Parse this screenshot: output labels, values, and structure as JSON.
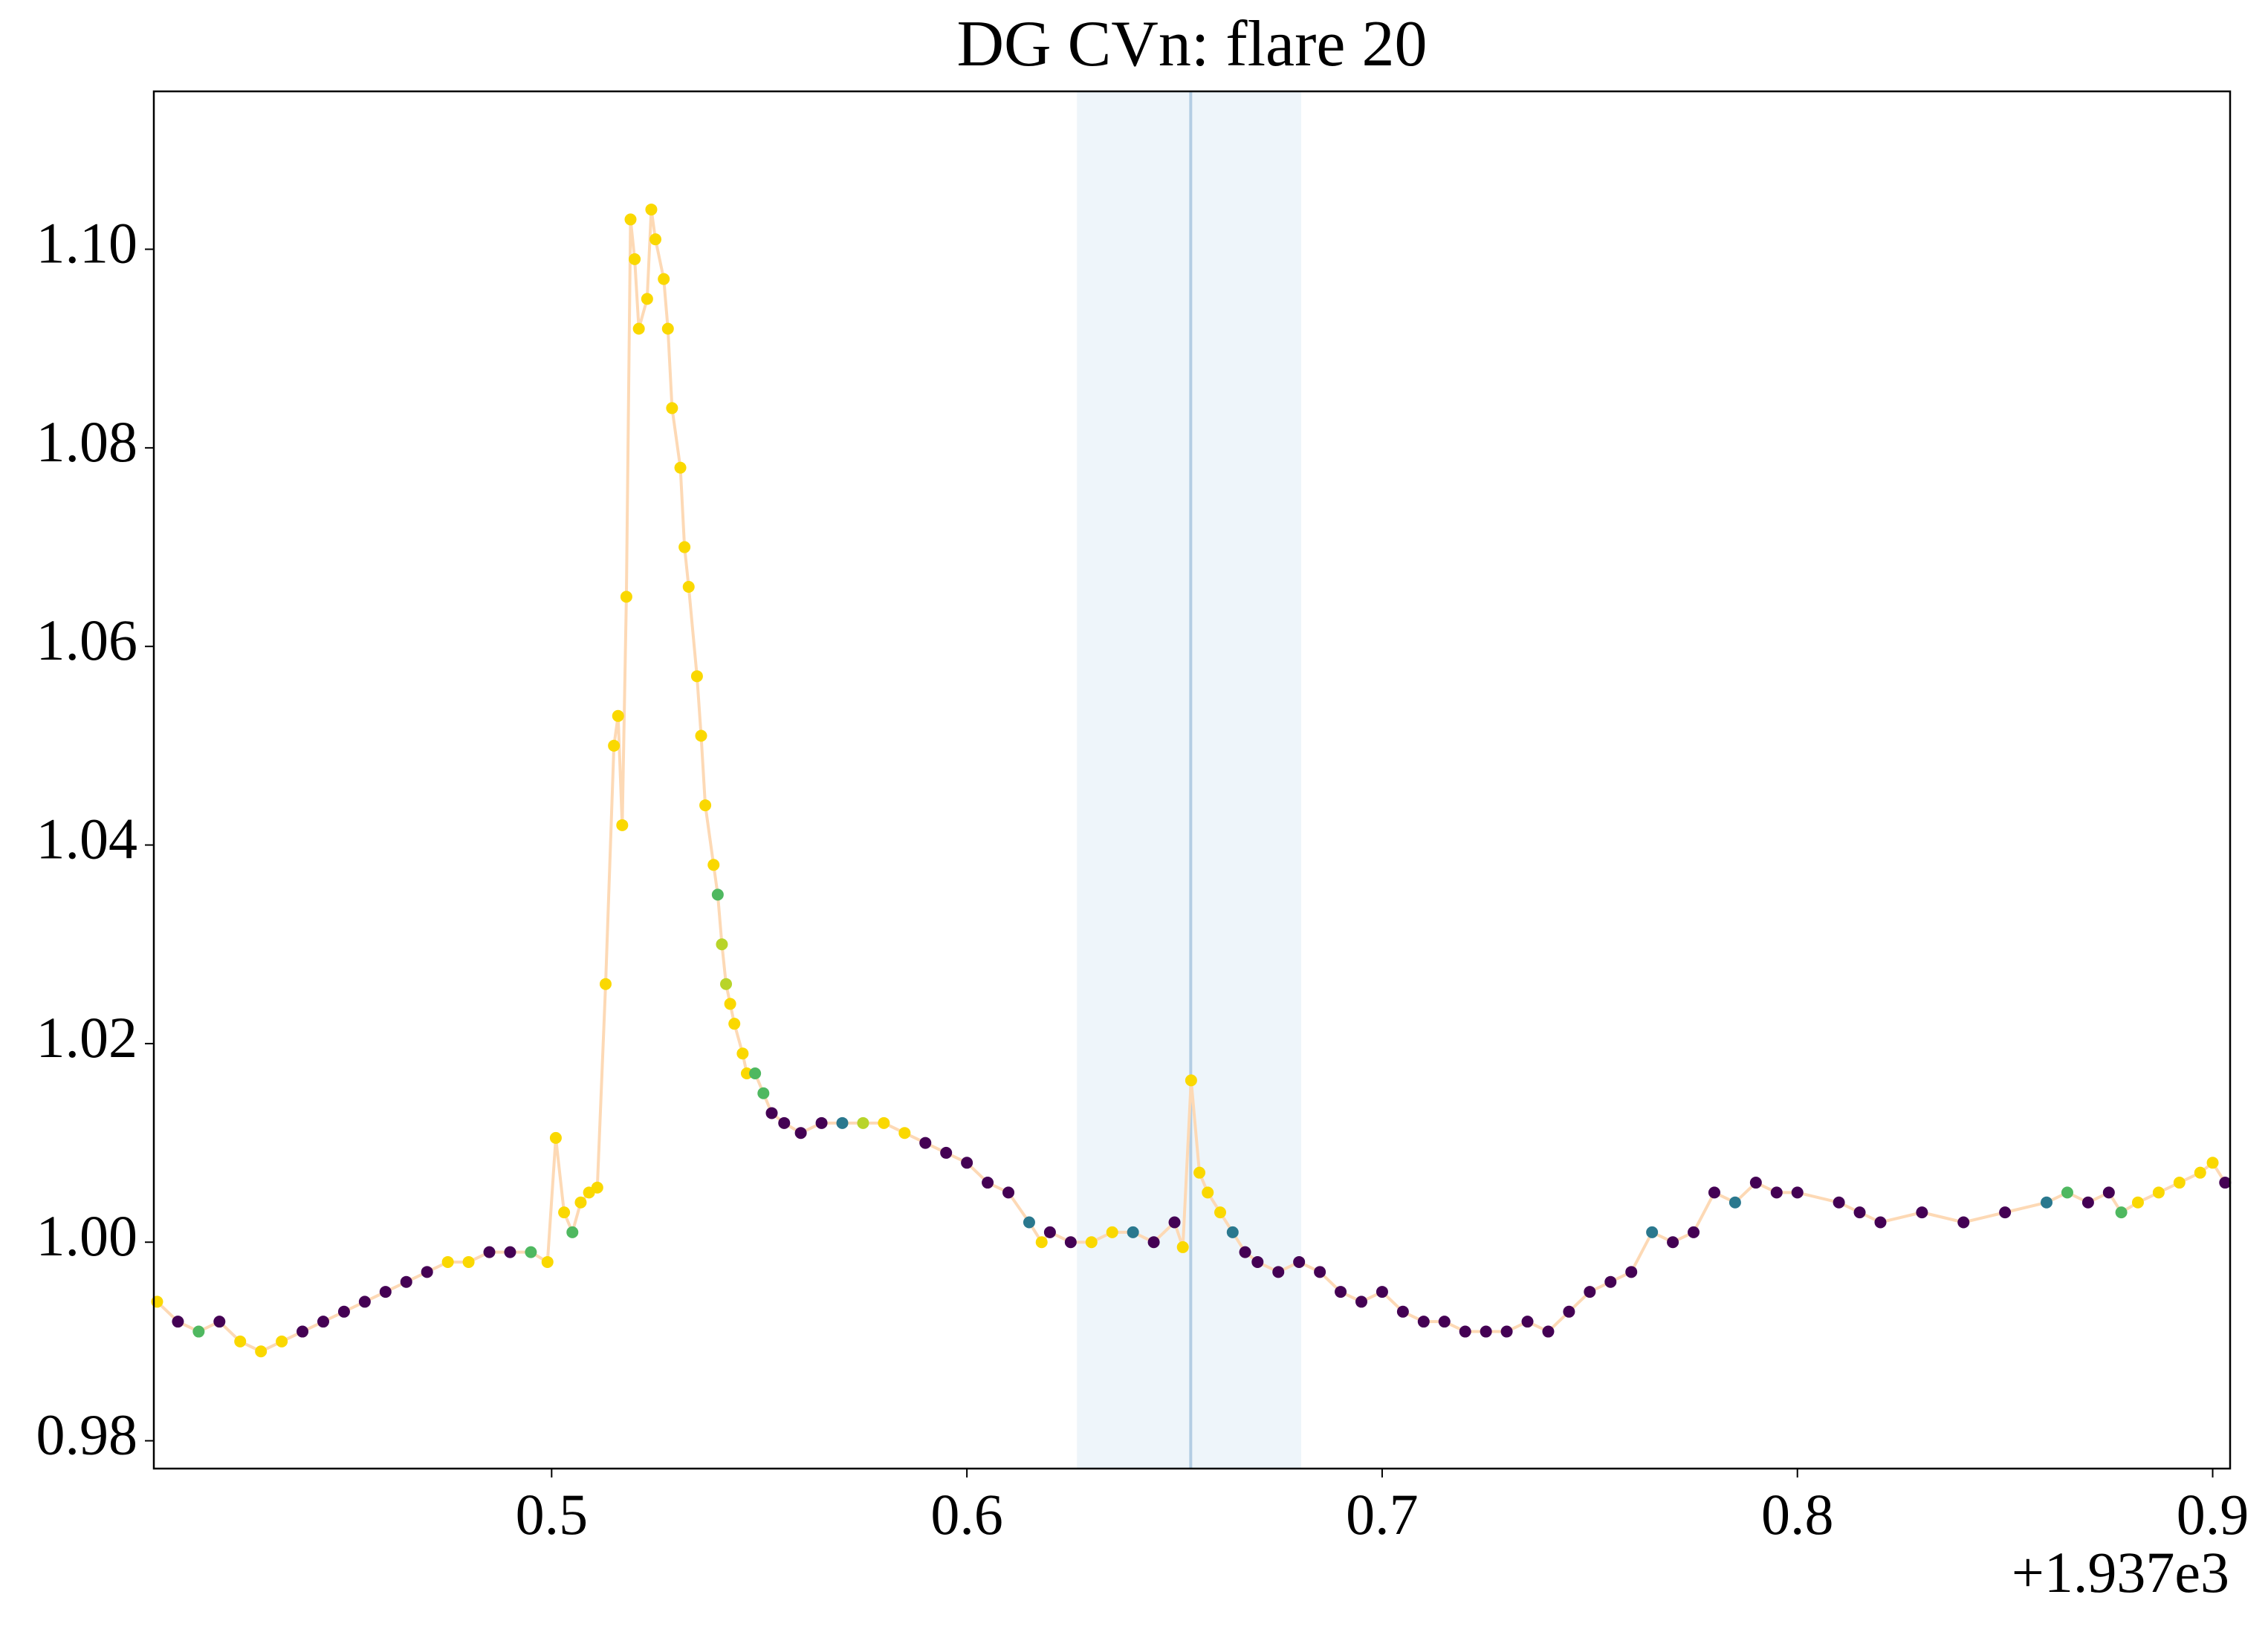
{
  "chart_data": {
    "type": "line",
    "title": "DG CVn: flare 20",
    "x_offset_label": "+1.937e3",
    "xlim": [
      1937.4042,
      1937.9042
    ],
    "ylim": [
      0.9772,
      1.1159
    ],
    "xticks": [
      {
        "value": 1937.5,
        "label": "0.5"
      },
      {
        "value": 1937.6,
        "label": "0.6"
      },
      {
        "value": 1937.7,
        "label": "0.7"
      },
      {
        "value": 1937.8,
        "label": "0.8"
      },
      {
        "value": 1937.9,
        "label": "0.9"
      }
    ],
    "yticks": [
      {
        "value": 0.98,
        "label": "0.98"
      },
      {
        "value": 1.0,
        "label": "1.00"
      },
      {
        "value": 1.02,
        "label": "1.02"
      },
      {
        "value": 1.04,
        "label": "1.04"
      },
      {
        "value": 1.06,
        "label": "1.06"
      },
      {
        "value": 1.08,
        "label": "1.08"
      },
      {
        "value": 1.1,
        "label": "1.10"
      }
    ],
    "span": {
      "xlim": [
        1937.6265,
        1937.6805
      ],
      "color": "#eef5fa"
    },
    "vline": {
      "x": 1937.6539,
      "color": "#b3cde3"
    },
    "markers": true,
    "x": [
      1937.405,
      1937.41,
      1937.415,
      1937.42,
      1937.425,
      1937.43,
      1937.435,
      1937.44,
      1937.445,
      1937.45,
      1937.455,
      1937.46,
      1937.465,
      1937.47,
      1937.475,
      1937.48,
      1937.485,
      1937.49,
      1937.495,
      1937.499,
      1937.501,
      1937.503,
      1937.505,
      1937.507,
      1937.509,
      1937.511,
      1937.513,
      1937.515,
      1937.516,
      1937.517,
      1937.518,
      1937.519,
      1937.52,
      1937.521,
      1937.523,
      1937.524,
      1937.525,
      1937.527,
      1937.528,
      1937.529,
      1937.531,
      1937.532,
      1937.533,
      1937.535,
      1937.536,
      1937.537,
      1937.539,
      1937.54,
      1937.541,
      1937.542,
      1937.543,
      1937.544,
      1937.546,
      1937.547,
      1937.549,
      1937.551,
      1937.553,
      1937.556,
      1937.56,
      1937.565,
      1937.57,
      1937.575,
      1937.58,
      1937.585,
      1937.59,
      1937.595,
      1937.6,
      1937.605,
      1937.61,
      1937.615,
      1937.618,
      1937.62,
      1937.625,
      1937.63,
      1937.635,
      1937.64,
      1937.645,
      1937.65,
      1937.652,
      1937.654,
      1937.656,
      1937.658,
      1937.661,
      1937.664,
      1937.667,
      1937.67,
      1937.675,
      1937.68,
      1937.685,
      1937.69,
      1937.695,
      1937.7,
      1937.705,
      1937.71,
      1937.715,
      1937.72,
      1937.725,
      1937.73,
      1937.735,
      1937.74,
      1937.745,
      1937.75,
      1937.755,
      1937.76,
      1937.765,
      1937.77,
      1937.775,
      1937.78,
      1937.785,
      1937.79,
      1937.795,
      1937.8,
      1937.81,
      1937.815,
      1937.82,
      1937.83,
      1937.84,
      1937.85,
      1937.86,
      1937.865,
      1937.87,
      1937.875,
      1937.878,
      1937.882,
      1937.887,
      1937.892,
      1937.897,
      1937.9,
      1937.903
    ],
    "series": [
      {
        "color": "#fdd9b5",
        "values": [
          0.994,
          0.992,
          0.991,
          0.992,
          0.99,
          0.989,
          0.99,
          0.991,
          0.992,
          0.993,
          0.994,
          0.995,
          0.996,
          0.997,
          0.998,
          0.998,
          0.999,
          0.999,
          0.999,
          0.998,
          1.0105,
          1.003,
          1.001,
          1.004,
          1.005,
          1.0055,
          1.026,
          1.05,
          1.053,
          1.042,
          1.065,
          1.103,
          1.099,
          1.092,
          1.095,
          1.104,
          1.101,
          1.097,
          1.092,
          1.084,
          1.078,
          1.07,
          1.066,
          1.057,
          1.051,
          1.044,
          1.038,
          1.035,
          1.03,
          1.026,
          1.024,
          1.022,
          1.019,
          1.017,
          1.017,
          1.015,
          1.013,
          1.012,
          1.011,
          1.012,
          1.012,
          1.012,
          1.012,
          1.011,
          1.01,
          1.009,
          1.008,
          1.006,
          1.005,
          1.002,
          1.0,
          1.001,
          1.0,
          1.0,
          1.001,
          1.001,
          1.0,
          1.002,
          0.9995,
          1.0163,
          1.007,
          1.005,
          1.003,
          1.001,
          0.999,
          0.998,
          0.997,
          0.998,
          0.997,
          0.995,
          0.994,
          0.995,
          0.993,
          0.992,
          0.992,
          0.991,
          0.991,
          0.991,
          0.992,
          0.991,
          0.993,
          0.995,
          0.996,
          0.997,
          1.001,
          1.0,
          1.001,
          1.005,
          1.004,
          1.006,
          1.005,
          1.005,
          1.004,
          1.003,
          1.002,
          1.003,
          1.002,
          1.003,
          1.004,
          1.005,
          1.004,
          1.005,
          1.003,
          1.004,
          1.005,
          1.006,
          1.007,
          1.008,
          1.006
        ]
      }
    ],
    "point_colors": [
      "#fad800",
      "#440154",
      "#4fb860",
      "#440154",
      "#fad800",
      "#fad800",
      "#fad800",
      "#440154",
      "#440154",
      "#440154",
      "#440154",
      "#440154",
      "#440154",
      "#440154",
      "#fad800",
      "#fad800",
      "#440154",
      "#440154",
      "#4fb860",
      "#fad800",
      "#fad800",
      "#fad800",
      "#4fb860",
      "#fad800",
      "#fad800",
      "#fad800",
      "#fad800",
      "#fad800",
      "#fad800",
      "#fad800",
      "#fad800",
      "#fad800",
      "#fad800",
      "#fad800",
      "#fad800",
      "#fad800",
      "#fad800",
      "#fad800",
      "#fad800",
      "#fad800",
      "#fad800",
      "#fad800",
      "#fad800",
      "#fad800",
      "#fad800",
      "#fad800",
      "#fad800",
      "#4fb860",
      "#b8d42a",
      "#b8d42a",
      "#fad800",
      "#fad800",
      "#fad800",
      "#fad800",
      "#4fb860",
      "#4fb860",
      "#440154",
      "#440154",
      "#440154",
      "#440154",
      "#2a788e",
      "#b8d42a",
      "#fad800",
      "#fad800",
      "#440154",
      "#440154",
      "#440154",
      "#440154",
      "#440154",
      "#2a788e",
      "#fad800",
      "#440154",
      "#440154",
      "#fad800",
      "#fad800",
      "#2a788e",
      "#440154",
      "#440154",
      "#fad800",
      "#fad800",
      "#fad800",
      "#fad800",
      "#fad800",
      "#2a788e",
      "#440154",
      "#440154",
      "#440154",
      "#440154",
      "#440154",
      "#440154",
      "#440154",
      "#440154",
      "#440154",
      "#440154",
      "#440154",
      "#440154",
      "#440154",
      "#440154",
      "#440154",
      "#440154",
      "#440154",
      "#440154",
      "#440154",
      "#440154",
      "#2a788e",
      "#440154",
      "#440154",
      "#440154",
      "#2a788e",
      "#440154",
      "#440154",
      "#440154",
      "#440154",
      "#440154",
      "#440154",
      "#440154",
      "#440154",
      "#440154",
      "#2a788e",
      "#4fb860",
      "#440154",
      "#440154",
      "#4fb860",
      "#fad800",
      "#fad800",
      "#fad800",
      "#fad800",
      "#fad800",
      "#440154"
    ]
  }
}
